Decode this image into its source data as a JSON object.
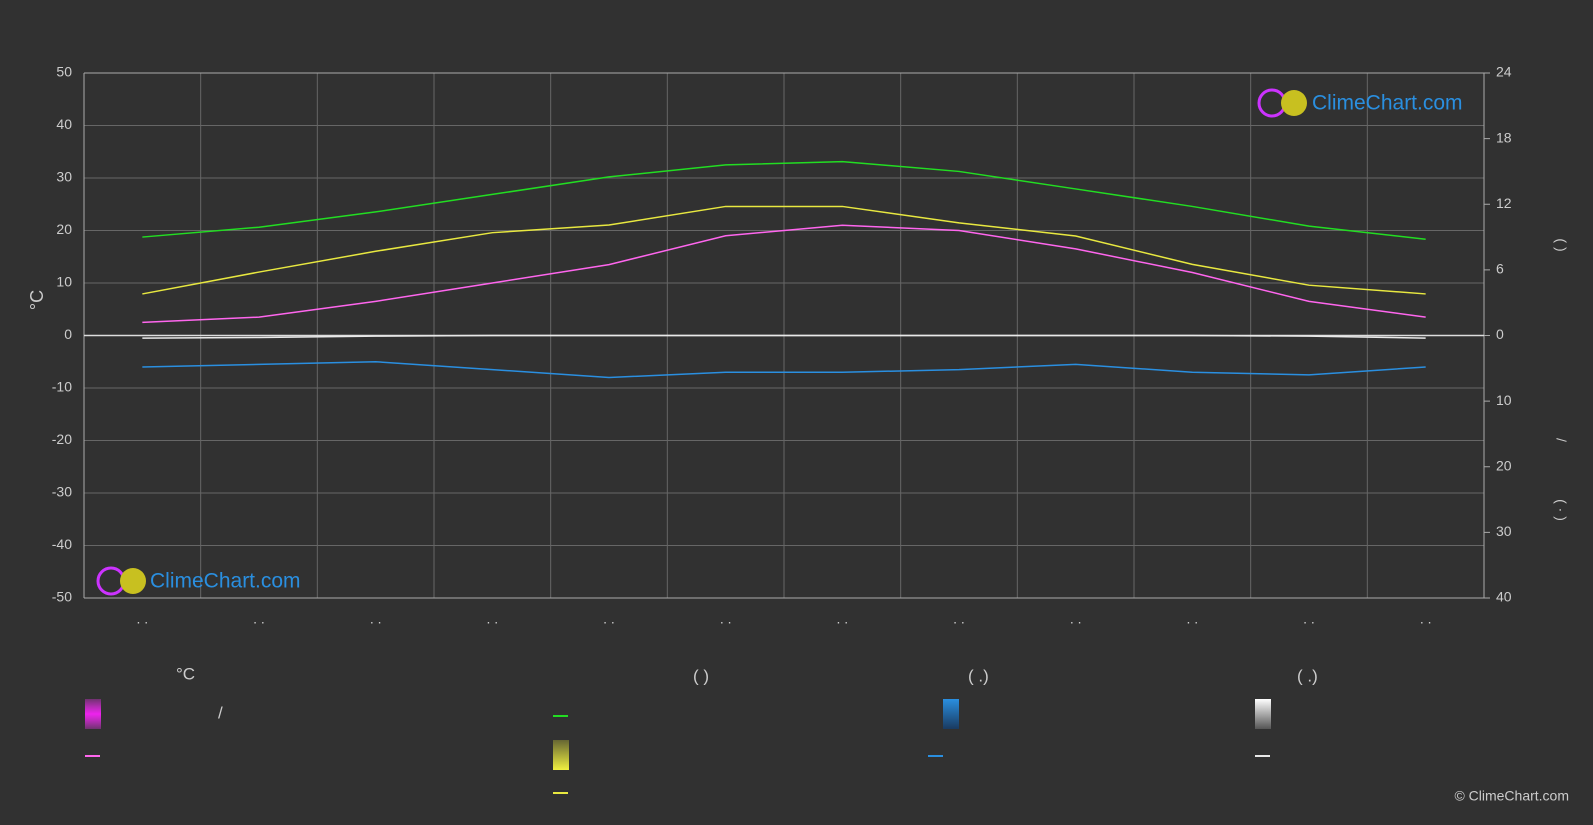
{
  "chart_data": {
    "type": "line",
    "categories": [
      ". .",
      ". .",
      ". .",
      ". .",
      ". .",
      ". .",
      ". .",
      ". .",
      ". .",
      ". .",
      ". .",
      ". ."
    ],
    "ylim": [
      -50,
      50
    ],
    "yticks": [
      -50,
      -40,
      -30,
      -20,
      -10,
      0,
      10,
      20,
      30,
      40,
      50
    ],
    "ylabel": "°C",
    "sun_axis": {
      "lim": [
        0,
        24
      ],
      "ticks": [
        0,
        6,
        12,
        18,
        24
      ],
      "label": "(   )"
    },
    "precip_axis": {
      "lim": [
        0,
        40
      ],
      "ticks": [
        10,
        20,
        30,
        40
      ],
      "labels": [
        "/",
        "( · )"
      ]
    },
    "grid": true,
    "series": [
      {
        "color": "#22dd22",
        "axis": "sun",
        "values": [
          9.0,
          9.9,
          11.3,
          12.9,
          14.5,
          15.6,
          15.9,
          15.0,
          13.4,
          11.8,
          10.0,
          8.8
        ]
      },
      {
        "color": "#e8e840",
        "axis": "sun",
        "values": [
          3.8,
          5.8,
          7.7,
          9.4,
          10.1,
          11.8,
          11.8,
          10.3,
          9.1,
          6.5,
          4.6,
          3.8
        ]
      },
      {
        "color": "#ff66ee",
        "axis": "temp",
        "values": [
          2.5,
          3.5,
          6.5,
          10,
          13.5,
          19,
          21,
          20,
          16.5,
          12,
          6.5,
          3.5
        ]
      },
      {
        "color": "#2a8fe0",
        "axis": "precip",
        "values": [
          4.8,
          4.4,
          4.0,
          5.2,
          6.4,
          5.6,
          5.6,
          5.2,
          4.4,
          5.6,
          6.0,
          4.8
        ]
      },
      {
        "color": "#e8e8e8",
        "axis": "precip",
        "values": [
          0.4,
          0.3,
          0.1,
          0,
          0,
          0,
          0,
          0,
          0,
          0,
          0.1,
          0.4
        ]
      }
    ],
    "legend": {
      "headers": [
        "°C",
        "(          )",
        "(   .)",
        "(   .)"
      ],
      "slash": "/"
    },
    "watermark": "ClimeChart.com",
    "copyright": "© ClimeChart.com"
  }
}
